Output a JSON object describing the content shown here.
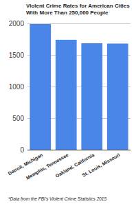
{
  "chart_data": {
    "type": "bar",
    "title": "Violent Crime Rates for American Cities With More Than 250,000 People",
    "categories": [
      "Detroit, Michigan",
      "Memphis, Tennessee",
      "Oakland, California",
      "St. Louis, Missouri"
    ],
    "values": [
      1989,
      1740,
      1685,
      1680
    ],
    "color": "#4a86e8",
    "ylim": [
      0,
      2000
    ],
    "yticks": [
      0,
      500,
      1000,
      1500,
      2000
    ],
    "grid": true,
    "annotations": [
      "*Data from the FBI's Violent Crime Statistics 2015"
    ]
  }
}
